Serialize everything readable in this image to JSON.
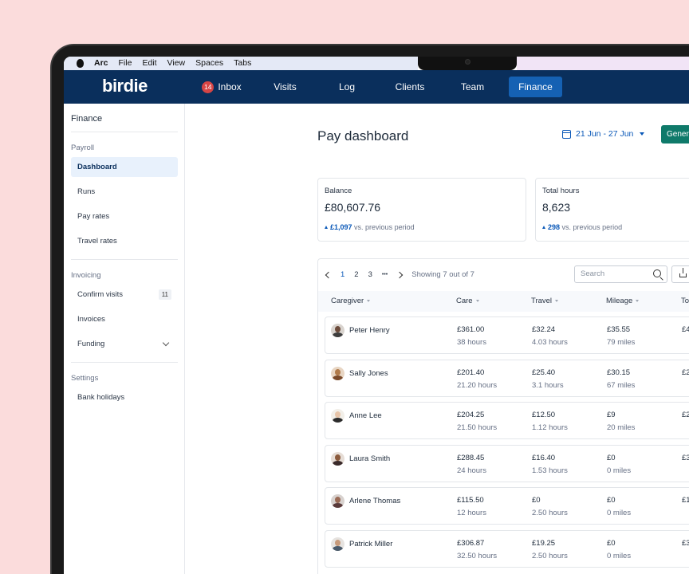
{
  "menubar": {
    "app": "Arc",
    "items": [
      "File",
      "Edit",
      "View",
      "Spaces",
      "Tabs"
    ]
  },
  "nav": {
    "logo": "birdie",
    "inbox_count": "14",
    "items": [
      "Inbox",
      "Visits",
      "Log",
      "Clients",
      "Team",
      "Finance"
    ],
    "active": "Finance"
  },
  "sidebar": {
    "title": "Finance",
    "payroll_heading": "Payroll",
    "payroll_items": [
      "Dashboard",
      "Runs",
      "Pay rates",
      "Travel rates"
    ],
    "invoicing_heading": "Invoicing",
    "invoicing_items": [
      "Confirm visits",
      "Invoices",
      "Funding"
    ],
    "confirm_visits_count": "11",
    "settings_heading": "Settings",
    "settings_items": [
      "Bank holidays"
    ]
  },
  "header": {
    "title": "Pay dashboard",
    "date_range": "21 Jun - 27 Jun",
    "generate_label": "Gener"
  },
  "cards": [
    {
      "label": "Balance",
      "value": "£80,607.76",
      "delta": "£1,097",
      "compare": "vs. previous period"
    },
    {
      "label": "Total hours",
      "value": "8,623",
      "delta": "298",
      "compare": "vs. previous period"
    }
  ],
  "pager": {
    "pages": [
      "1",
      "2",
      "3"
    ],
    "ellipsis": "•••",
    "showing": "Showing 7 out of 7"
  },
  "search": {
    "placeholder": "Search"
  },
  "table": {
    "columns": [
      "Caregiver",
      "Care",
      "Travel",
      "Mileage",
      "To"
    ],
    "rows": [
      {
        "name": "Peter Henry",
        "care": "£361.00",
        "care_hours": "38 hours",
        "travel": "£32.24",
        "travel_hours": "4.03 hours",
        "mileage": "£35.55",
        "miles": "79 miles",
        "total": "£4"
      },
      {
        "name": "Sally Jones",
        "care": "£201.40",
        "care_hours": "21.20 hours",
        "travel": "£25.40",
        "travel_hours": "3.1 hours",
        "mileage": "£30.15",
        "miles": "67 miles",
        "total": "£2"
      },
      {
        "name": "Anne Lee",
        "care": "£204.25",
        "care_hours": "21.50 hours",
        "travel": "£12.50",
        "travel_hours": "1.12 hours",
        "mileage": "£9",
        "miles": "20 miles",
        "total": "£2"
      },
      {
        "name": "Laura Smith",
        "care": "£288.45",
        "care_hours": "24 hours",
        "travel": "£16.40",
        "travel_hours": "1.53 hours",
        "mileage": "£0",
        "miles": "0 miles",
        "total": "£3"
      },
      {
        "name": "Arlene Thomas",
        "care": "£115.50",
        "care_hours": "12 hours",
        "travel": "£0",
        "travel_hours": "2.50 hours",
        "mileage": "£0",
        "miles": "0 miles",
        "total": "£1"
      },
      {
        "name": "Patrick Miller",
        "care": "£306.87",
        "care_hours": "32.50 hours",
        "travel": "£19.25",
        "travel_hours": "2.50 hours",
        "mileage": "£0",
        "miles": "0 miles",
        "total": "£3"
      }
    ]
  },
  "colors": {
    "background": "#fbdcdc",
    "nav": "#0a2f5c",
    "accent": "#0a58b8",
    "generate_button": "#0f7a6a"
  }
}
